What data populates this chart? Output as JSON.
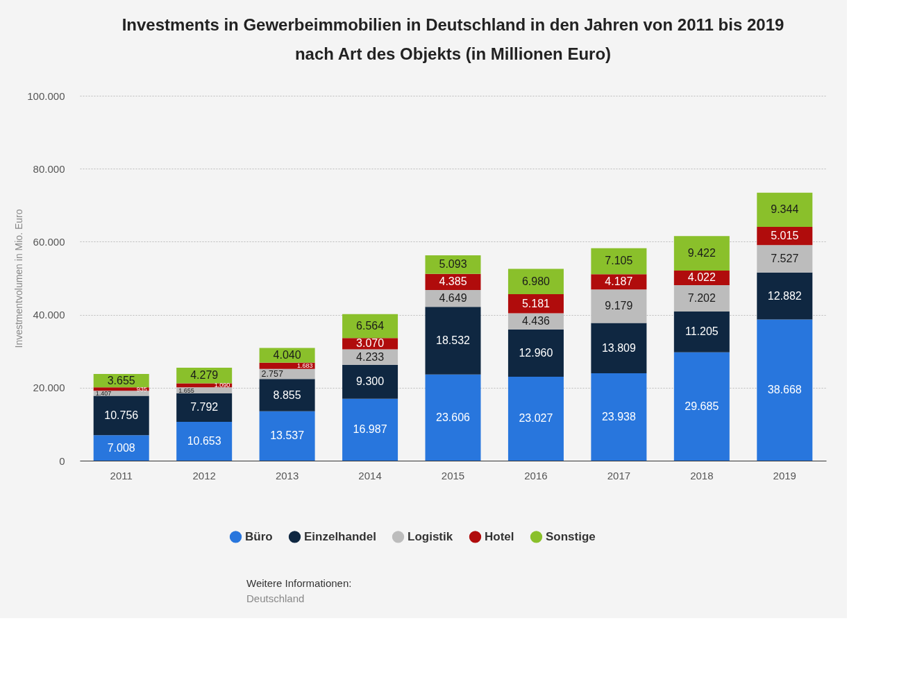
{
  "chart_data": {
    "type": "bar",
    "stacked": true,
    "title": "Investments in Gewerbeimmobilien in Deutschland in den Jahren von 2011 bis 2019 nach Art des Objekts (in Millionen Euro)",
    "ylabel": "Investmentvolumen in Mio. Euro",
    "categories": [
      "2011",
      "2012",
      "2013",
      "2014",
      "2015",
      "2016",
      "2017",
      "2018",
      "2019"
    ],
    "series": [
      {
        "name": "Büro",
        "color": "#2876dd",
        "values": [
          7008,
          10653,
          13537,
          16987,
          23606,
          23027,
          23938,
          29685,
          38668
        ],
        "value_labels": [
          "7.008",
          "10.653",
          "13.537",
          "16.987",
          "23.606",
          "23.027",
          "23.938",
          "29.685",
          "38.668"
        ]
      },
      {
        "name": "Einzelhandel",
        "color": "#0f2741",
        "values": [
          10756,
          7792,
          8855,
          9300,
          18532,
          12960,
          13809,
          11205,
          12882
        ],
        "value_labels": [
          "10.756",
          "7.792",
          "8.855",
          "9.300",
          "18.532",
          "12.960",
          "13.809",
          "11.205",
          "12.882"
        ]
      },
      {
        "name": "Logistik",
        "color": "#bcbcbc",
        "values": [
          1407,
          1655,
          2757,
          4233,
          4649,
          4436,
          9179,
          7202,
          7527
        ],
        "value_labels": [
          "1.407",
          "1.655",
          "2.757",
          "4.233",
          "4.649",
          "4.436",
          "9.179",
          "7.202",
          "7.527"
        ]
      },
      {
        "name": "Hotel",
        "color": "#b00c0c",
        "values": [
          935,
          1090,
          1683,
          3070,
          4385,
          5181,
          4187,
          4022,
          5015
        ],
        "value_labels": [
          "935",
          "1.090",
          "1.683",
          "3.070",
          "4.385",
          "5.181",
          "4.187",
          "4.022",
          "5.015"
        ]
      },
      {
        "name": "Sonstige",
        "color": "#8ac02b",
        "values": [
          3655,
          4279,
          4040,
          6564,
          5093,
          6980,
          7105,
          9422,
          9344
        ],
        "value_labels": [
          "3.655",
          "4.279",
          "4.040",
          "6.564",
          "5.093",
          "6.980",
          "7.105",
          "9.422",
          "9.344"
        ]
      }
    ],
    "ylim": [
      0,
      100000
    ],
    "yticks": [
      0,
      {
        "value": 20000,
        "label": "20.000"
      },
      {
        "value": 40000,
        "label": "40.000"
      },
      {
        "value": 60000,
        "label": "60.000"
      },
      {
        "value": 80000,
        "label": "80.000"
      },
      {
        "value": 100000,
        "label": "100.000"
      }
    ],
    "grid": "y",
    "legend": "bottom",
    "annotations": [
      "Weitere Informationen:",
      "Deutschland"
    ]
  }
}
